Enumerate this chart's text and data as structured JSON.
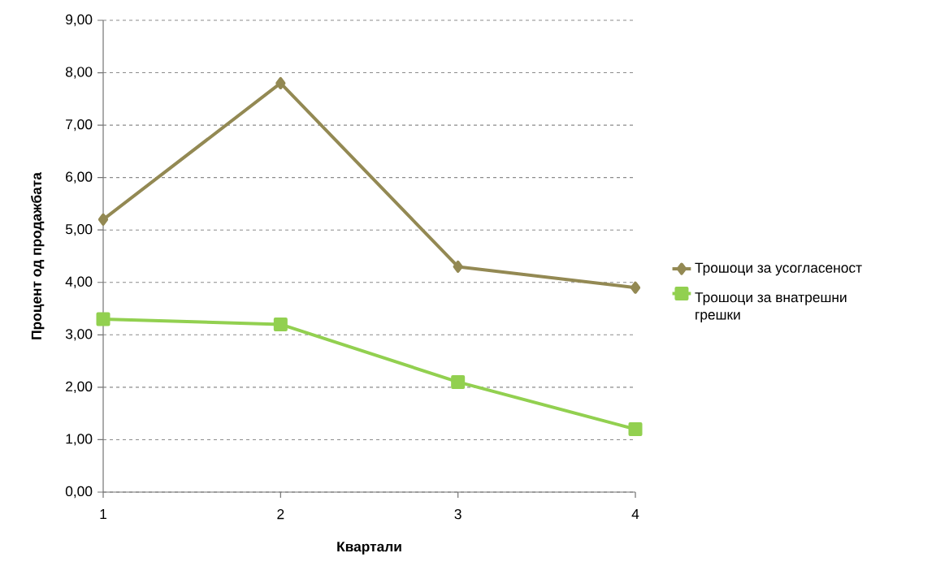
{
  "chart_data": {
    "type": "line",
    "xlabel": "Квартали",
    "ylabel": "Процент од продажбата",
    "categories": [
      "1",
      "2",
      "3",
      "4"
    ],
    "series": [
      {
        "name": "Трошоци за усогласеност",
        "color": "#938953",
        "marker": "diamond",
        "values": [
          5.2,
          7.8,
          4.3,
          3.9
        ]
      },
      {
        "name": "Трошоци за внатрешни грешки",
        "color": "#92d050",
        "marker": "square",
        "values": [
          3.3,
          3.2,
          2.1,
          1.2
        ]
      }
    ],
    "ylim": [
      0,
      9
    ],
    "yticks": [
      {
        "value": 0,
        "label": "0,00"
      },
      {
        "value": 1,
        "label": "1,00"
      },
      {
        "value": 2,
        "label": "2,00"
      },
      {
        "value": 3,
        "label": "3,00"
      },
      {
        "value": 4,
        "label": "4,00"
      },
      {
        "value": 5,
        "label": "5,00"
      },
      {
        "value": 6,
        "label": "6,00"
      },
      {
        "value": 7,
        "label": "7,00"
      },
      {
        "value": 8,
        "label": "8,00"
      },
      {
        "value": 9,
        "label": "9,00"
      }
    ],
    "grid": "y",
    "legend": "right",
    "line_style": "solid"
  }
}
